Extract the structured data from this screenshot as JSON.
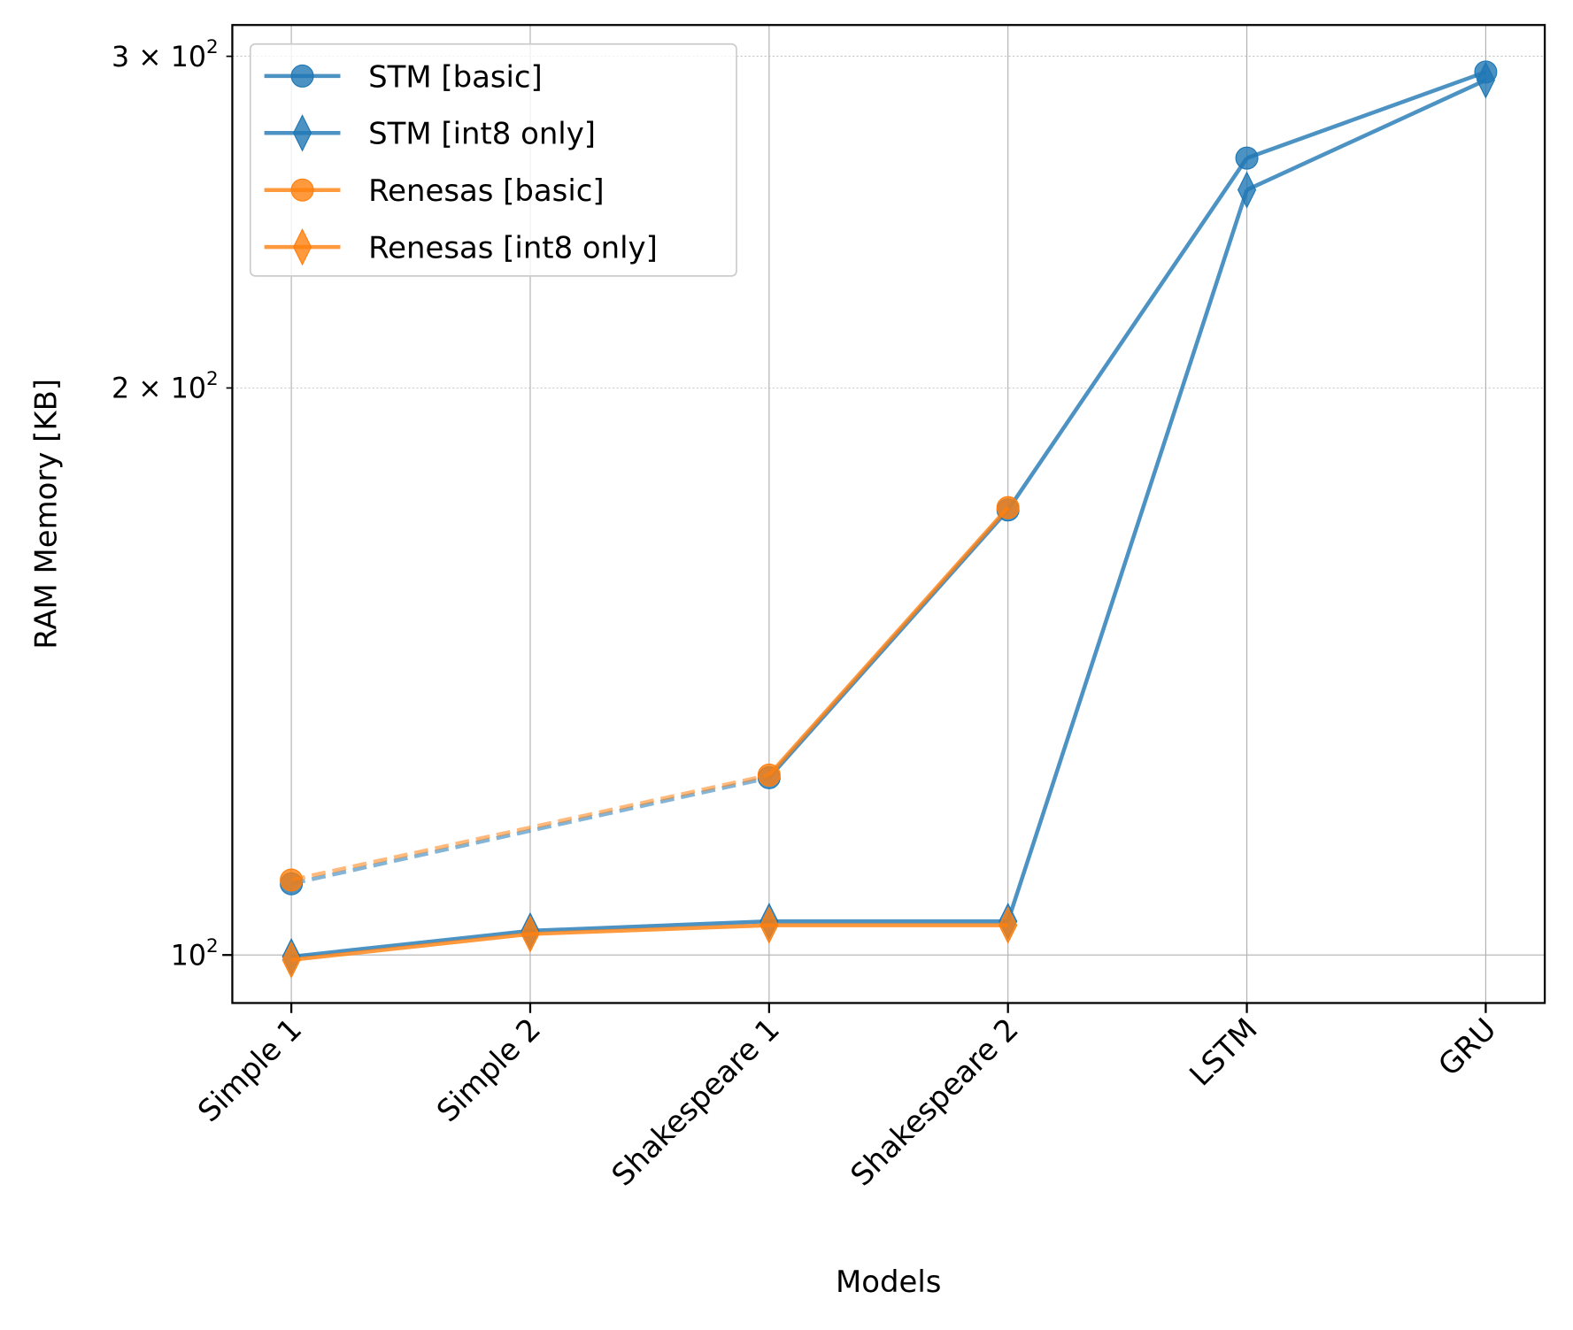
{
  "chart_data": {
    "type": "line",
    "title": "",
    "xlabel": "Models",
    "ylabel": "RAM Memory [KB]",
    "yscale": "log",
    "ylim": [
      94.3,
      311.7
    ],
    "grid": true,
    "legend_placement": "top-left",
    "categories": [
      "Simple 1",
      "Simple 2",
      "Shakespeare 1",
      "Shakespeare 2",
      "LSTM",
      "GRU"
    ],
    "yticks": [
      {
        "value": 100,
        "base": "10",
        "exp": "2",
        "mult": ""
      },
      {
        "value": 200,
        "base": "10",
        "exp": "2",
        "mult": "2 × "
      },
      {
        "value": 300,
        "base": "10",
        "exp": "2",
        "mult": "3 × "
      }
    ],
    "series": [
      {
        "name": "STM [basic]",
        "color": "#1f77b4",
        "marker": "circle",
        "values": [
          109.1,
          null,
          124.2,
          172.3,
          264.9,
          294.3
        ]
      },
      {
        "name": "STM [int8 only]",
        "color": "#1f77b4",
        "marker": "diamond",
        "values": [
          99.8,
          103.0,
          104.2,
          104.2,
          254.8,
          291.4
        ]
      },
      {
        "name": "Renesas [basic]",
        "color": "#ff7f0e",
        "marker": "circle",
        "values": [
          109.6,
          null,
          124.6,
          172.8,
          null,
          null
        ]
      },
      {
        "name": "Renesas [int8 only]",
        "color": "#ff7f0e",
        "marker": "diamond",
        "values": [
          99.4,
          102.6,
          103.7,
          103.7,
          null,
          null
        ]
      }
    ],
    "notes": "dashed segments bridge missing Simple 2 values for basic series"
  }
}
